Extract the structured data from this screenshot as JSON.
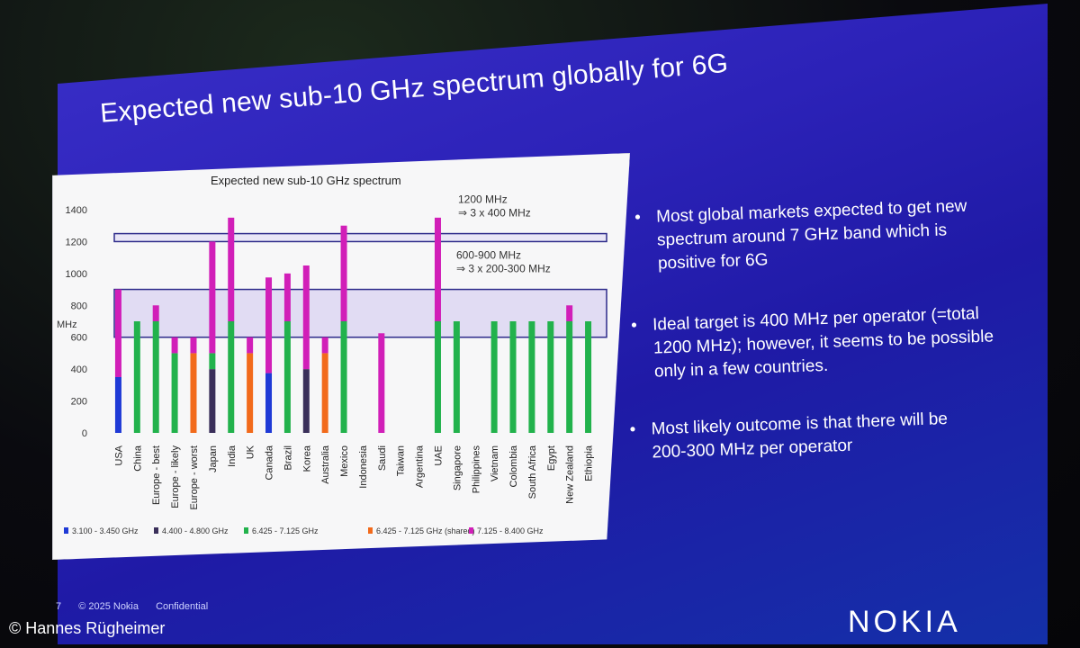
{
  "slide": {
    "title": "Expected new sub-10 GHz spectrum globally for 6G",
    "bullets": [
      "Most global markets expected to get new spectrum around 7 GHz band which is positive for 6G",
      "Ideal target is 400 MHz per operator (=total 1200 MHz); however, it seems to be possible only in a few countries.",
      "Most likely outcome is that there will be 200-300 MHz per operator"
    ],
    "bullet_symbol": "•",
    "footer": {
      "page": "7",
      "copyright": "© 2025 Nokia",
      "label": "Confidential"
    },
    "brand": "NOKIA",
    "photo_credit": "© Hannes Rügheimer"
  },
  "chart_data": {
    "type": "bar",
    "stacked": true,
    "title": "Expected new sub-10 GHz spectrum",
    "ylabel": "MHz",
    "ylim": [
      0,
      1400
    ],
    "yticks": [
      0,
      200,
      400,
      600,
      800,
      1000,
      1200,
      1400
    ],
    "categories": [
      "USA",
      "China",
      "Europe - best",
      "Europe - likely",
      "Europe - worst",
      "Japan",
      "India",
      "UK",
      "Canada",
      "Brazil",
      "Korea",
      "Australia",
      "Mexico",
      "Indonesia",
      "Saudi",
      "Taiwan",
      "Argentina",
      "UAE",
      "Singapore",
      "Philippines",
      "Vietnam",
      "Colombia",
      "South Africa",
      "Egypt",
      "New Zealand",
      "Ethiopia"
    ],
    "series": [
      {
        "name": "3.100 - 3.450 GHz",
        "color": "#1f3ad6",
        "values": [
          350,
          0,
          0,
          0,
          0,
          0,
          0,
          0,
          375,
          0,
          0,
          0,
          0,
          0,
          0,
          0,
          0,
          0,
          0,
          0,
          0,
          0,
          0,
          0,
          0,
          0
        ]
      },
      {
        "name": "4.400 - 4.800 GHz",
        "color": "#3a2f5a",
        "values": [
          0,
          0,
          0,
          0,
          0,
          400,
          0,
          0,
          0,
          0,
          400,
          0,
          0,
          0,
          0,
          0,
          0,
          0,
          0,
          0,
          0,
          0,
          0,
          0,
          0,
          0
        ]
      },
      {
        "name": "6.425 - 7.125 GHz",
        "color": "#22b24c",
        "values": [
          0,
          700,
          700,
          500,
          0,
          100,
          700,
          0,
          0,
          700,
          0,
          0,
          700,
          0,
          0,
          0,
          0,
          700,
          700,
          0,
          700,
          700,
          700,
          700,
          700,
          700
        ]
      },
      {
        "name": "6.425 - 7.125 GHz (shared)",
        "color": "#f26a1b",
        "values": [
          0,
          0,
          0,
          0,
          500,
          0,
          0,
          500,
          0,
          0,
          0,
          500,
          0,
          0,
          0,
          0,
          0,
          0,
          0,
          0,
          0,
          0,
          0,
          0,
          0,
          0
        ]
      },
      {
        "name": "7.125 - 8.400 GHz",
        "color": "#d11fb8",
        "values": [
          550,
          0,
          100,
          100,
          100,
          700,
          650,
          100,
          600,
          300,
          650,
          100,
          600,
          0,
          625,
          0,
          0,
          650,
          0,
          0,
          0,
          0,
          0,
          0,
          100,
          0
        ]
      }
    ],
    "annotations": [
      {
        "lines": [
          "1200 MHz",
          "⇒ 3 x 400 MHz"
        ],
        "y_low": 1200,
        "y_high": 1250,
        "style": "line-band"
      },
      {
        "lines": [
          "600-900 MHz",
          "⇒ 3 x 200-300 MHz"
        ],
        "y_low": 600,
        "y_high": 900,
        "style": "shaded-band"
      }
    ],
    "legend_position": "bottom",
    "grid": false
  }
}
